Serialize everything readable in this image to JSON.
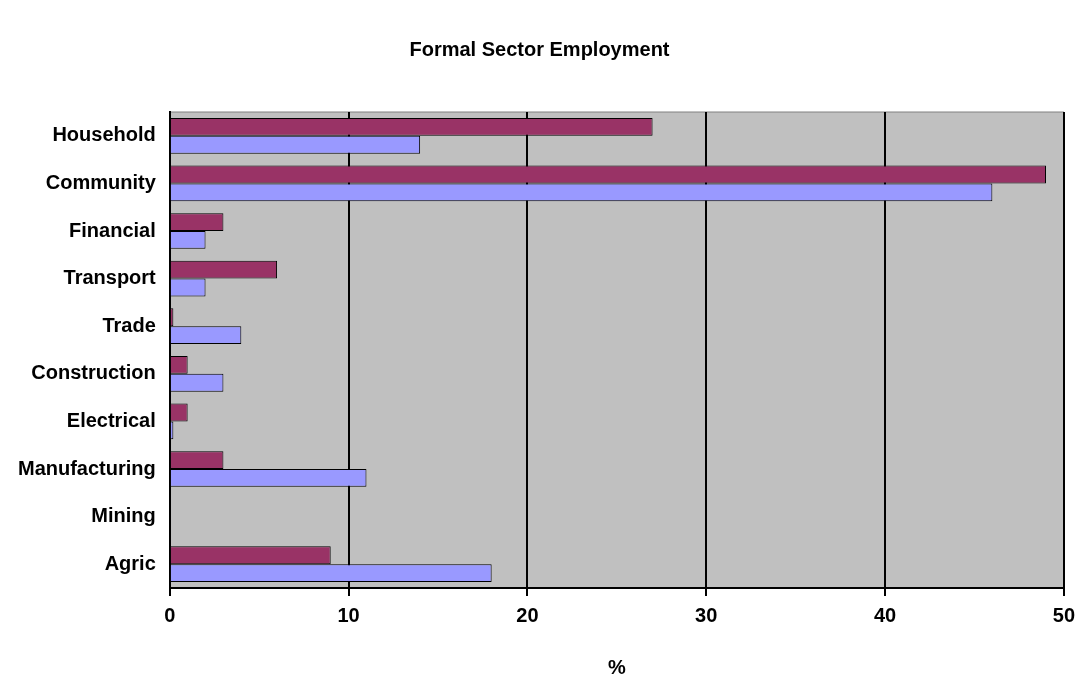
{
  "chart_data": {
    "type": "bar",
    "orientation": "horizontal",
    "title": "Formal Sector Employment",
    "xlabel": "%",
    "categories": [
      "Household",
      "Community",
      "Financial",
      "Transport",
      "Trade",
      "Construction",
      "Electrical",
      "Manufacturing",
      "Mining",
      "Agric"
    ],
    "series": [
      {
        "color": "#993366",
        "values": [
          27,
          49,
          3,
          6,
          0.2,
          1,
          1,
          3,
          0,
          9
        ]
      },
      {
        "color": "#9999ff",
        "values": [
          14,
          46,
          2,
          2,
          4,
          3,
          0.2,
          11,
          0,
          18
        ]
      }
    ],
    "xlim": [
      0,
      50
    ],
    "xticks": [
      0,
      10,
      20,
      30,
      40,
      50
    ],
    "grid": "x",
    "legend": false
  }
}
